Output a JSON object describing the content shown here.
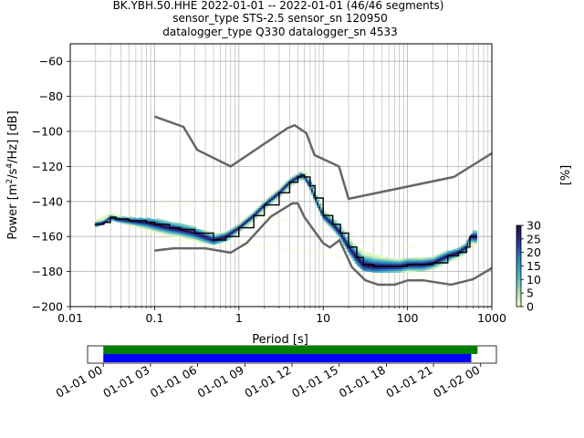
{
  "chart_data": {
    "type": "heatmap",
    "title_lines": [
      "BK.YBH.50.HHE   2022-01-01 -- 2022-01-01  (46/46 segments)",
      "sensor_type STS-2.5 sensor_sn 120950",
      "datalogger_type Q330 datalogger_sn 4533"
    ],
    "xlabel": "Period [s]",
    "ylabel": "Power [m²/s⁴/Hz] [dB]",
    "x_scale": "log",
    "xlim": [
      0.01,
      1000
    ],
    "ylim": [
      -200,
      -50
    ],
    "x_ticks": [
      0.01,
      0.1,
      1,
      10,
      100,
      1000
    ],
    "x_tick_labels": [
      "0.01",
      "0.1",
      "1",
      "10",
      "100",
      "1000"
    ],
    "y_ticks": [
      -200,
      -180,
      -160,
      -140,
      -120,
      -100,
      -80,
      -60
    ],
    "y_tick_labels": [
      "−200",
      "−180",
      "−160",
      "−140",
      "−120",
      "−100",
      "−80",
      "−60"
    ],
    "grid": true,
    "colorbar": {
      "label": "[%]",
      "range": [
        0,
        30
      ],
      "ticks": [
        0,
        5,
        10,
        15,
        20,
        25,
        30
      ],
      "colormap": [
        "#ffffcc",
        "#a1dab4",
        "#41b6c4",
        "#2c7fb8",
        "#253494",
        "#2a0a4a"
      ]
    },
    "noise_models": {
      "color": "#666666",
      "high": {
        "period": [
          0.1,
          0.22,
          0.32,
          0.8,
          3.8,
          4.6,
          6.3,
          7.9,
          15.4,
          20,
          354.8,
          1000
        ],
        "power": [
          -91.5,
          -97.4,
          -110.5,
          -120,
          -98,
          -96.5,
          -101,
          -113.5,
          -120,
          -138.5,
          -126,
          -112.5
        ]
      },
      "low": {
        "period": [
          0.1,
          0.17,
          0.4,
          0.8,
          1.24,
          2.4,
          4.3,
          5,
          6,
          10,
          12,
          15.6,
          21.9,
          31.6,
          45,
          70,
          101,
          154,
          328,
          600,
          1000
        ],
        "power": [
          -168,
          -166.7,
          -166.7,
          -169.2,
          -163.7,
          -148.6,
          -141.1,
          -141.1,
          -149,
          -163.8,
          -166.2,
          -162.1,
          -177.5,
          -185,
          -187.5,
          -187.5,
          -185,
          -185,
          -187.5,
          -184.4,
          -178
        ]
      }
    },
    "median": {
      "period": [
        0.02,
        0.025,
        0.03,
        0.035,
        0.05,
        0.08,
        0.1,
        0.15,
        0.2,
        0.3,
        0.5,
        0.7,
        1,
        1.5,
        2,
        3,
        4,
        5,
        5.5,
        6,
        7,
        8,
        10,
        13,
        16,
        20,
        25,
        30,
        40,
        60,
        80,
        100,
        150,
        200,
        300,
        400,
        500,
        550,
        600,
        650
      ],
      "power": [
        -153,
        -152,
        -149,
        -150,
        -151,
        -152,
        -153,
        -155,
        -156,
        -158,
        -162,
        -160,
        -155,
        -148,
        -142,
        -135,
        -129,
        -126,
        -125,
        -126,
        -131,
        -138,
        -148,
        -153,
        -158,
        -166,
        -172,
        -176,
        -177,
        -177,
        -177,
        -176,
        -176,
        -175,
        -171,
        -169,
        -166,
        -160,
        -160,
        -160
      ]
    },
    "psd_spread": {
      "period": [
        0.02,
        0.03,
        0.05,
        0.1,
        0.15,
        0.2,
        0.3,
        0.5,
        0.7,
        1,
        1.5,
        2,
        3,
        4,
        5,
        6,
        7,
        8,
        10,
        13,
        16,
        20,
        25,
        30,
        40,
        60,
        80,
        100,
        150,
        200,
        300,
        400,
        500,
        600,
        650
      ],
      "low": [
        -154,
        -150,
        -153,
        -157,
        -159,
        -160,
        -162,
        -164,
        -162,
        -157,
        -150,
        -144,
        -137,
        -131,
        -128,
        -127,
        -133,
        -140,
        -150,
        -156,
        -161,
        -169,
        -176,
        -179,
        -180,
        -180,
        -180,
        -180,
        -179,
        -178,
        -174,
        -172,
        -168,
        -164,
        -164
      ],
      "high": [
        -151,
        -147,
        -149,
        -150,
        -152,
        -153,
        -155,
        -158,
        -157,
        -153,
        -146,
        -140,
        -133,
        -127,
        -124,
        -123,
        -128,
        -135,
        -145,
        -150,
        -154,
        -161,
        -166,
        -168,
        -170,
        -172,
        -173,
        -173,
        -172,
        -172,
        -168,
        -167,
        -163,
        -157,
        -157
      ]
    },
    "faint_spread": {
      "period": [
        0.05,
        0.1,
        0.2,
        0.3,
        0.5,
        0.7,
        1,
        20,
        30,
        50,
        100,
        200
      ],
      "high": [
        -147,
        -143,
        -141,
        -141,
        -142,
        -143,
        -145,
        -157,
        -162,
        -164,
        -165,
        -165
      ],
      "low": [
        -154,
        -160,
        -162,
        -163,
        -165,
        -165,
        -163,
        -172,
        -180,
        -182,
        -182,
        -181
      ]
    },
    "time_axis": {
      "tick_labels": [
        "01-01 00",
        "01-01 03",
        "01-01 06",
        "01-01 09",
        "01-01 12",
        "01-01 15",
        "01-01 18",
        "01-01 21",
        "01-02 00"
      ],
      "range_hours": [
        -1,
        25
      ],
      "coverage_color": "#008000",
      "segments_color": "#0000ff",
      "coverage_hours": [
        0,
        23.8
      ],
      "segments_hours": [
        0,
        23.4
      ]
    }
  }
}
